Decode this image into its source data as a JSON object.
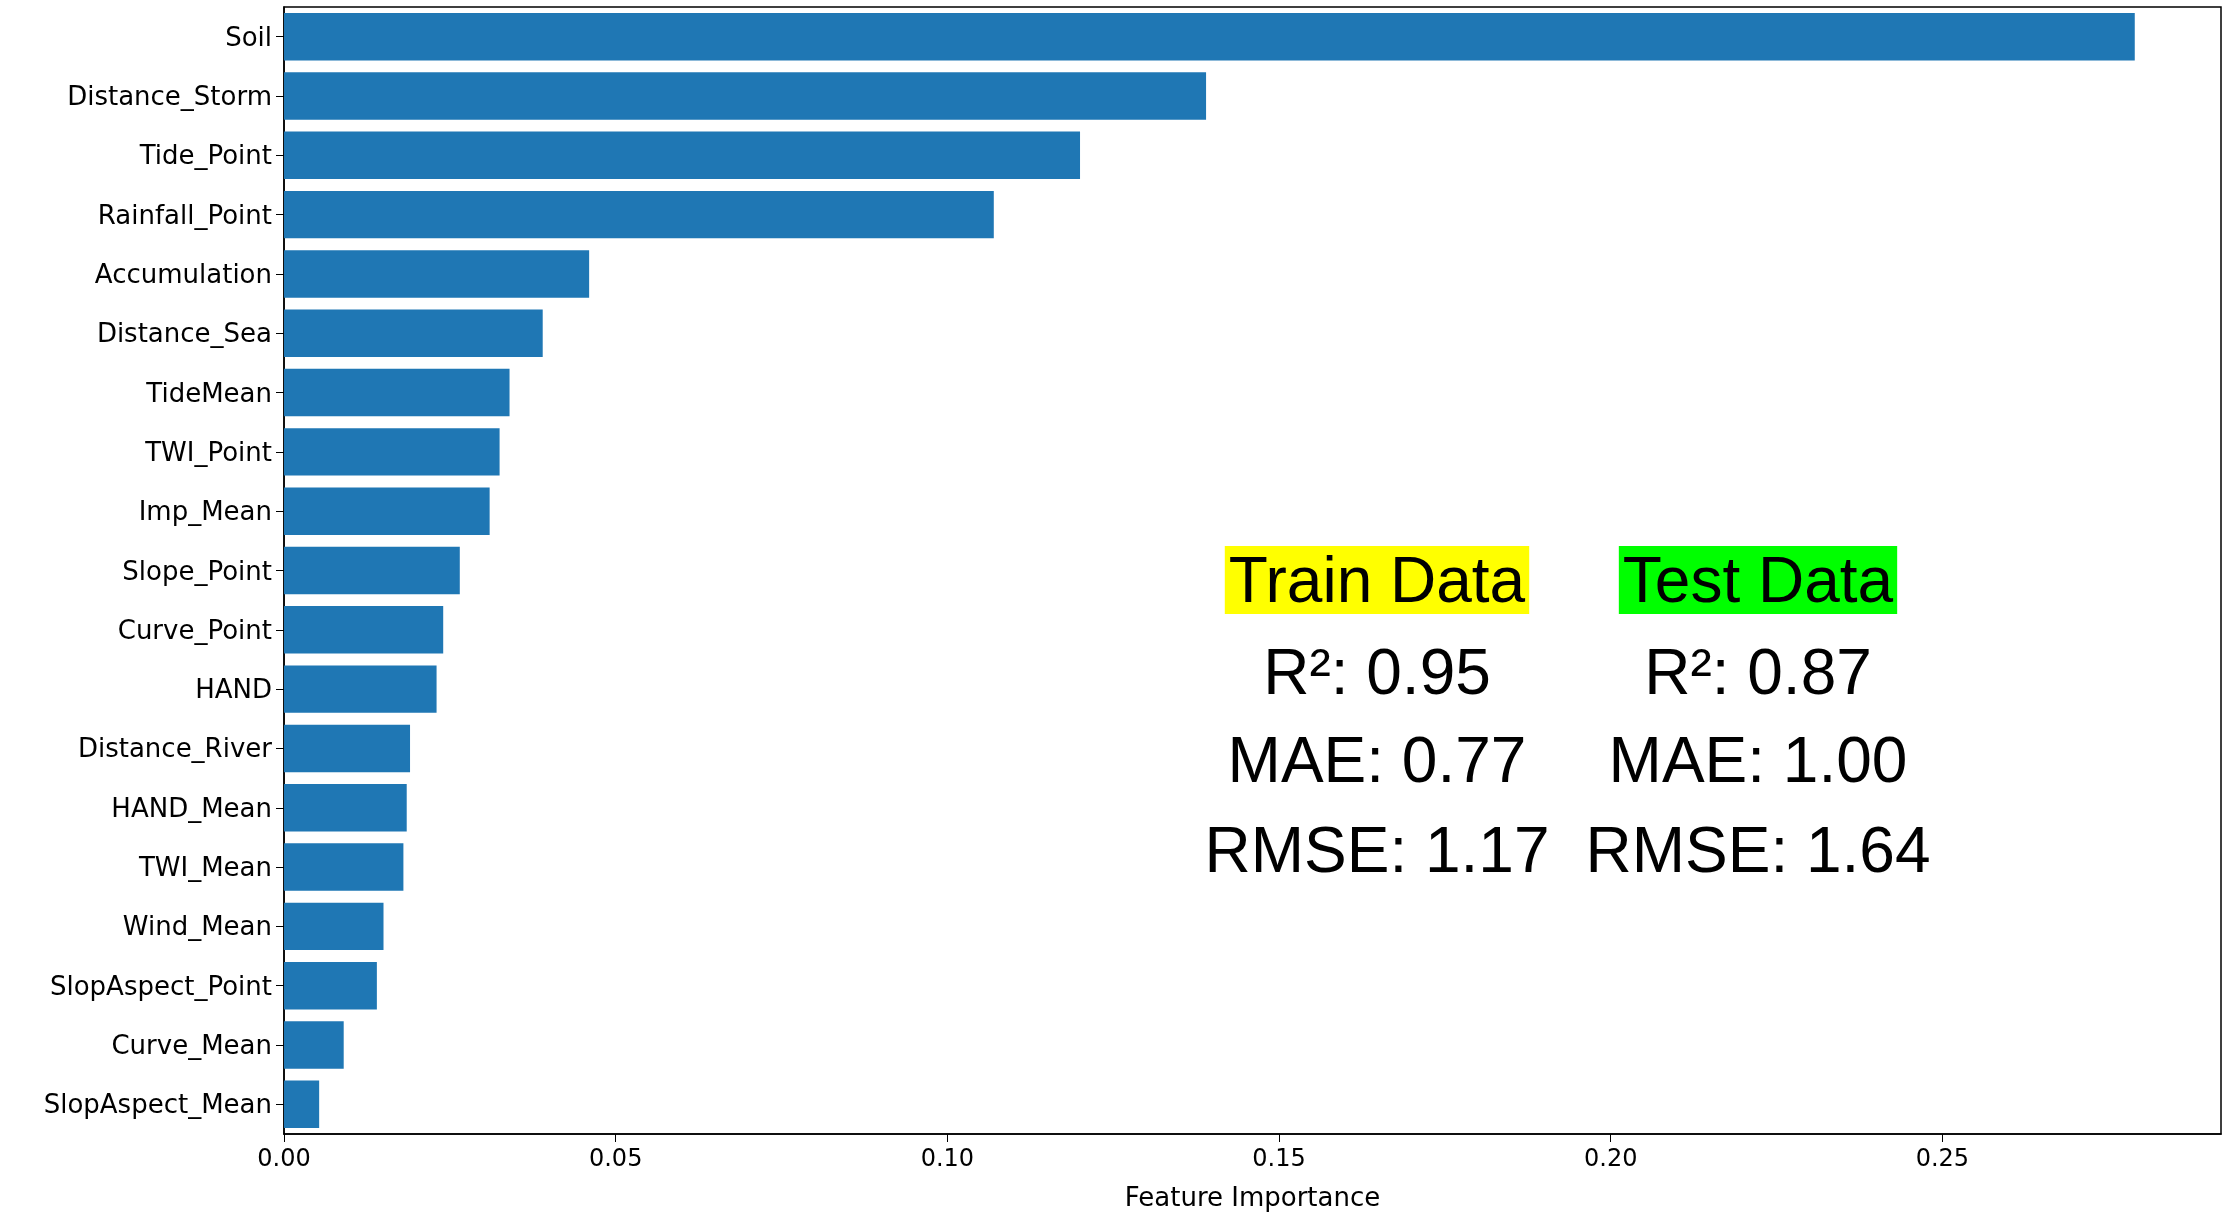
{
  "chart_data": {
    "type": "bar",
    "orientation": "horizontal",
    "xlabel": "Feature Importance",
    "categories": [
      "Soil",
      "Distance_Storm",
      "Tide_Point",
      "Rainfall_Point",
      "Accumulation",
      "Distance_Sea",
      "TideMean",
      "TWI_Point",
      "Imp_Mean",
      "Slope_Point",
      "Curve_Point",
      "HAND",
      "Distance_River",
      "HAND_Mean",
      "TWI_Mean",
      "Wind_Mean",
      "SlopAspect_Point",
      "Curve_Mean",
      "SlopAspect_Mean"
    ],
    "values": [
      0.279,
      0.139,
      0.12,
      0.107,
      0.046,
      0.039,
      0.034,
      0.0325,
      0.031,
      0.0265,
      0.024,
      0.023,
      0.019,
      0.0185,
      0.018,
      0.015,
      0.014,
      0.009,
      0.0053
    ],
    "color": "#1f77b4",
    "xlim": [
      0,
      0.292
    ],
    "xticks": [
      {
        "value": 0,
        "label": "0.00"
      },
      {
        "value": 0.05,
        "label": "0.05"
      },
      {
        "value": 0.1,
        "label": "0.10"
      },
      {
        "value": 0.15,
        "label": "0.15"
      },
      {
        "value": 0.2,
        "label": "0.20"
      },
      {
        "value": 0.25,
        "label": "0.25"
      }
    ],
    "grid": false,
    "annotations": [
      "Train Data",
      "R²: 0.95",
      "MAE: 0.77",
      "RMSE: 1.17",
      "Test Data",
      "R²: 0.87",
      "MAE: 1.00",
      "RMSE: 1.64"
    ]
  }
}
